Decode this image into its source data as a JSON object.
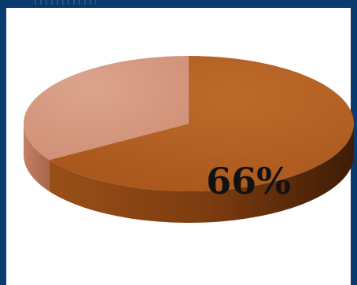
{
  "chart_data": {
    "type": "pie",
    "style": "3d",
    "slices": [
      {
        "label": "66%",
        "value": 66,
        "color": "#b45f22"
      },
      {
        "label": "",
        "value": 34,
        "color": "#d4957c"
      }
    ],
    "data_labels": [
      "66%"
    ],
    "legend": "none"
  }
}
